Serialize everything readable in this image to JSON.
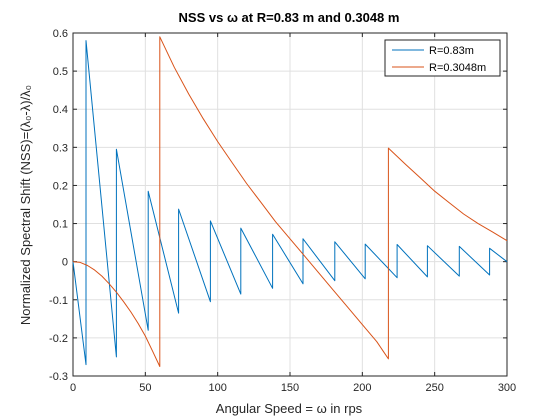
{
  "chart_data": {
    "type": "line",
    "title": "NSS vs ω at R=0.83 m and 0.3048 m",
    "xlabel": "Angular Speed = ω in rps",
    "ylabel": "Normalized Spectral Shift (NSS)=(λ₀-λ)/λ₀",
    "xlim": [
      0,
      300
    ],
    "ylim": [
      -0.3,
      0.6
    ],
    "xticks": [
      0,
      50,
      100,
      150,
      200,
      250,
      300
    ],
    "yticks": [
      -0.3,
      -0.2,
      -0.1,
      0,
      0.1,
      0.2,
      0.3,
      0.4,
      0.5,
      0.6
    ],
    "grid": true,
    "legend_position": "top-right",
    "series": [
      {
        "name": "R=0.83m",
        "color": "#0072BD",
        "x": [
          0,
          9,
          9,
          30,
          30,
          52,
          52,
          73,
          73,
          95,
          95,
          116,
          116,
          138,
          138,
          159,
          159,
          181,
          181,
          202,
          202,
          224,
          224,
          245,
          245,
          267,
          267,
          288,
          288,
          300
        ],
        "y": [
          0,
          -0.27,
          0.58,
          -0.25,
          0.295,
          -0.18,
          0.185,
          -0.135,
          0.138,
          -0.105,
          0.107,
          -0.085,
          0.088,
          -0.07,
          0.072,
          -0.058,
          0.06,
          -0.05,
          0.052,
          -0.045,
          0.046,
          -0.042,
          0.045,
          -0.04,
          0.042,
          -0.038,
          0.04,
          -0.035,
          0.035,
          0.0
        ]
      },
      {
        "name": "R=0.3048m",
        "color": "#D95319",
        "x": [
          0,
          5,
          10,
          15,
          20,
          25,
          30,
          35,
          40,
          45,
          50,
          55,
          60,
          60,
          70,
          80,
          90,
          100,
          110,
          120,
          130,
          140,
          150,
          160,
          170,
          180,
          190,
          200,
          210,
          218,
          218,
          230,
          240,
          250,
          260,
          270,
          280,
          290,
          300
        ],
        "y": [
          0,
          -0.002,
          -0.01,
          -0.022,
          -0.038,
          -0.058,
          -0.08,
          -0.105,
          -0.132,
          -0.162,
          -0.195,
          -0.235,
          -0.275,
          0.59,
          0.51,
          0.44,
          0.375,
          0.315,
          0.26,
          0.205,
          0.155,
          0.105,
          0.06,
          0.015,
          -0.03,
          -0.075,
          -0.12,
          -0.165,
          -0.21,
          -0.255,
          0.298,
          0.255,
          0.22,
          0.185,
          0.155,
          0.125,
          0.1,
          0.078,
          0.055
        ]
      }
    ]
  }
}
